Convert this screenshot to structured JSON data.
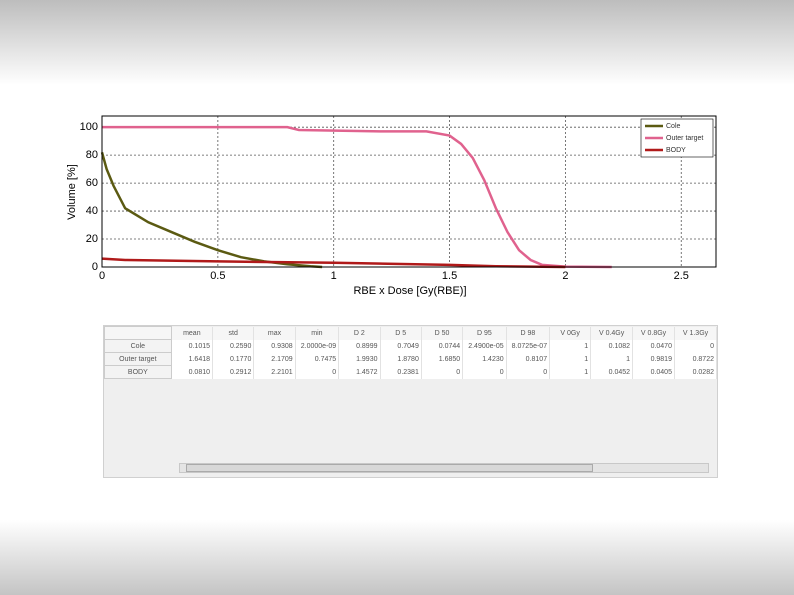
{
  "chart_data": {
    "type": "line",
    "xlabel": "RBE x Dose [Gy(RBE)]",
    "ylabel": "Volume [%]",
    "xlim": [
      0,
      2.65
    ],
    "xticks": [
      0,
      0.5,
      1,
      1.5,
      2,
      2.5
    ],
    "ylim": [
      0,
      108
    ],
    "yticks": [
      0,
      20,
      40,
      60,
      80,
      100
    ],
    "grid": true,
    "legend": "upper right",
    "series": [
      {
        "name": "Cole",
        "color": "#5b5a12",
        "x": [
          0,
          0.02,
          0.05,
          0.1,
          0.2,
          0.3,
          0.4,
          0.5,
          0.6,
          0.7,
          0.8,
          0.9,
          0.95
        ],
        "values": [
          82,
          70,
          58,
          42,
          32,
          25,
          18,
          12,
          7,
          4,
          2,
          0.5,
          0
        ]
      },
      {
        "name": "Outer target",
        "color": "#e0628e",
        "x": [
          0,
          0.8,
          0.85,
          1.2,
          1.4,
          1.5,
          1.55,
          1.6,
          1.65,
          1.7,
          1.75,
          1.8,
          1.85,
          1.9,
          2,
          2.2
        ],
        "values": [
          100,
          100,
          98,
          97,
          97,
          94,
          88,
          78,
          62,
          42,
          25,
          12,
          5,
          1.5,
          0.3,
          0
        ]
      },
      {
        "name": "BODY",
        "color": "#b01a1a",
        "x": [
          0,
          0.1,
          0.5,
          1,
          1.5,
          1.7,
          2
        ],
        "values": [
          6,
          5,
          4,
          3,
          1.5,
          0.5,
          0
        ]
      }
    ]
  },
  "table": {
    "columns": [
      "mean",
      "std",
      "max",
      "min",
      "D 2",
      "D 5",
      "D 50",
      "D 95",
      "D 98",
      "V 0Gy",
      "V 0.4Gy",
      "V 0.8Gy",
      "V 1.3Gy"
    ],
    "rows": [
      [
        "Cole",
        "0.1015",
        "0.2590",
        "0.9308",
        "2.0000e-09",
        "0.8999",
        "0.7049",
        "0.0744",
        "2.4900e-05",
        "8.0725e-07",
        "1",
        "0.1082",
        "0.0470",
        "0"
      ],
      [
        "Outer target",
        "1.6418",
        "0.1770",
        "2.1709",
        "0.7475",
        "1.9930",
        "1.8780",
        "1.6850",
        "1.4230",
        "0.8107",
        "1",
        "1",
        "0.9819",
        "0.8722"
      ],
      [
        "BODY",
        "0.0810",
        "0.2912",
        "2.2101",
        "0",
        "1.4572",
        "0.2381",
        "0",
        "0",
        "0",
        "1",
        "0.0452",
        "0.0405",
        "0.0282"
      ]
    ]
  }
}
